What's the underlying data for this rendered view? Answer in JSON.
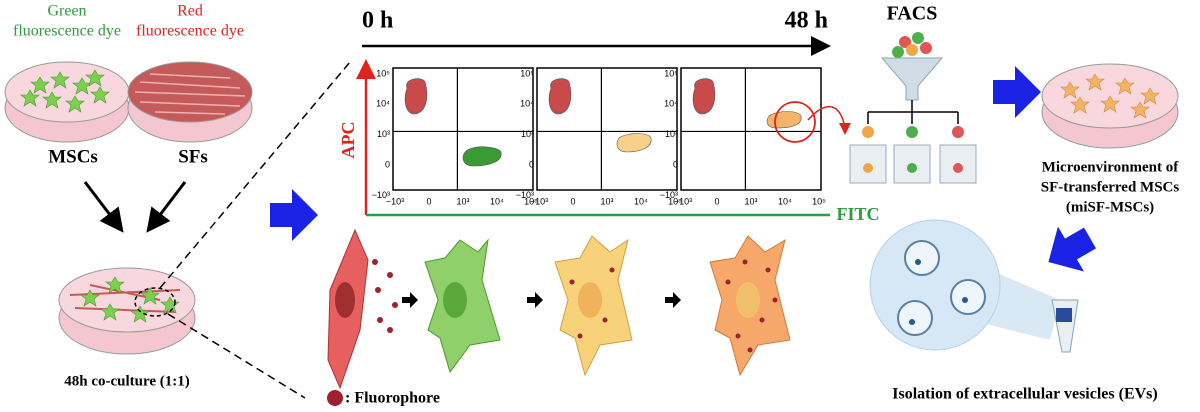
{
  "left": {
    "green_dye": [
      "Green",
      "fluorescence dye"
    ],
    "red_dye": [
      "Red",
      "fluorescence dye"
    ],
    "msc_label": "MSCs",
    "sf_label": "SFs",
    "coculture_label": "48h co-culture (1:1)"
  },
  "timeline": {
    "start": "0 h",
    "end": "48 h"
  },
  "facs_plots": {
    "y_axis_label": "APC",
    "x_axis_label": "FITC",
    "y_ticks": [
      "10⁵",
      "10⁴",
      "10³",
      "0",
      "−10³"
    ],
    "x_ticks": [
      "−10³",
      "0",
      "10³",
      "10⁴",
      "10⁵"
    ]
  },
  "facs": {
    "title": "FACS"
  },
  "right": {
    "microenvironment": [
      "Microenvironment of",
      "SF-transferred MSCs",
      "(miSF-MSCs)"
    ],
    "isolation": "Isolation of extracellular vesicles (EVs)"
  },
  "legend": {
    "fluorophore": ": Fluorophore"
  }
}
